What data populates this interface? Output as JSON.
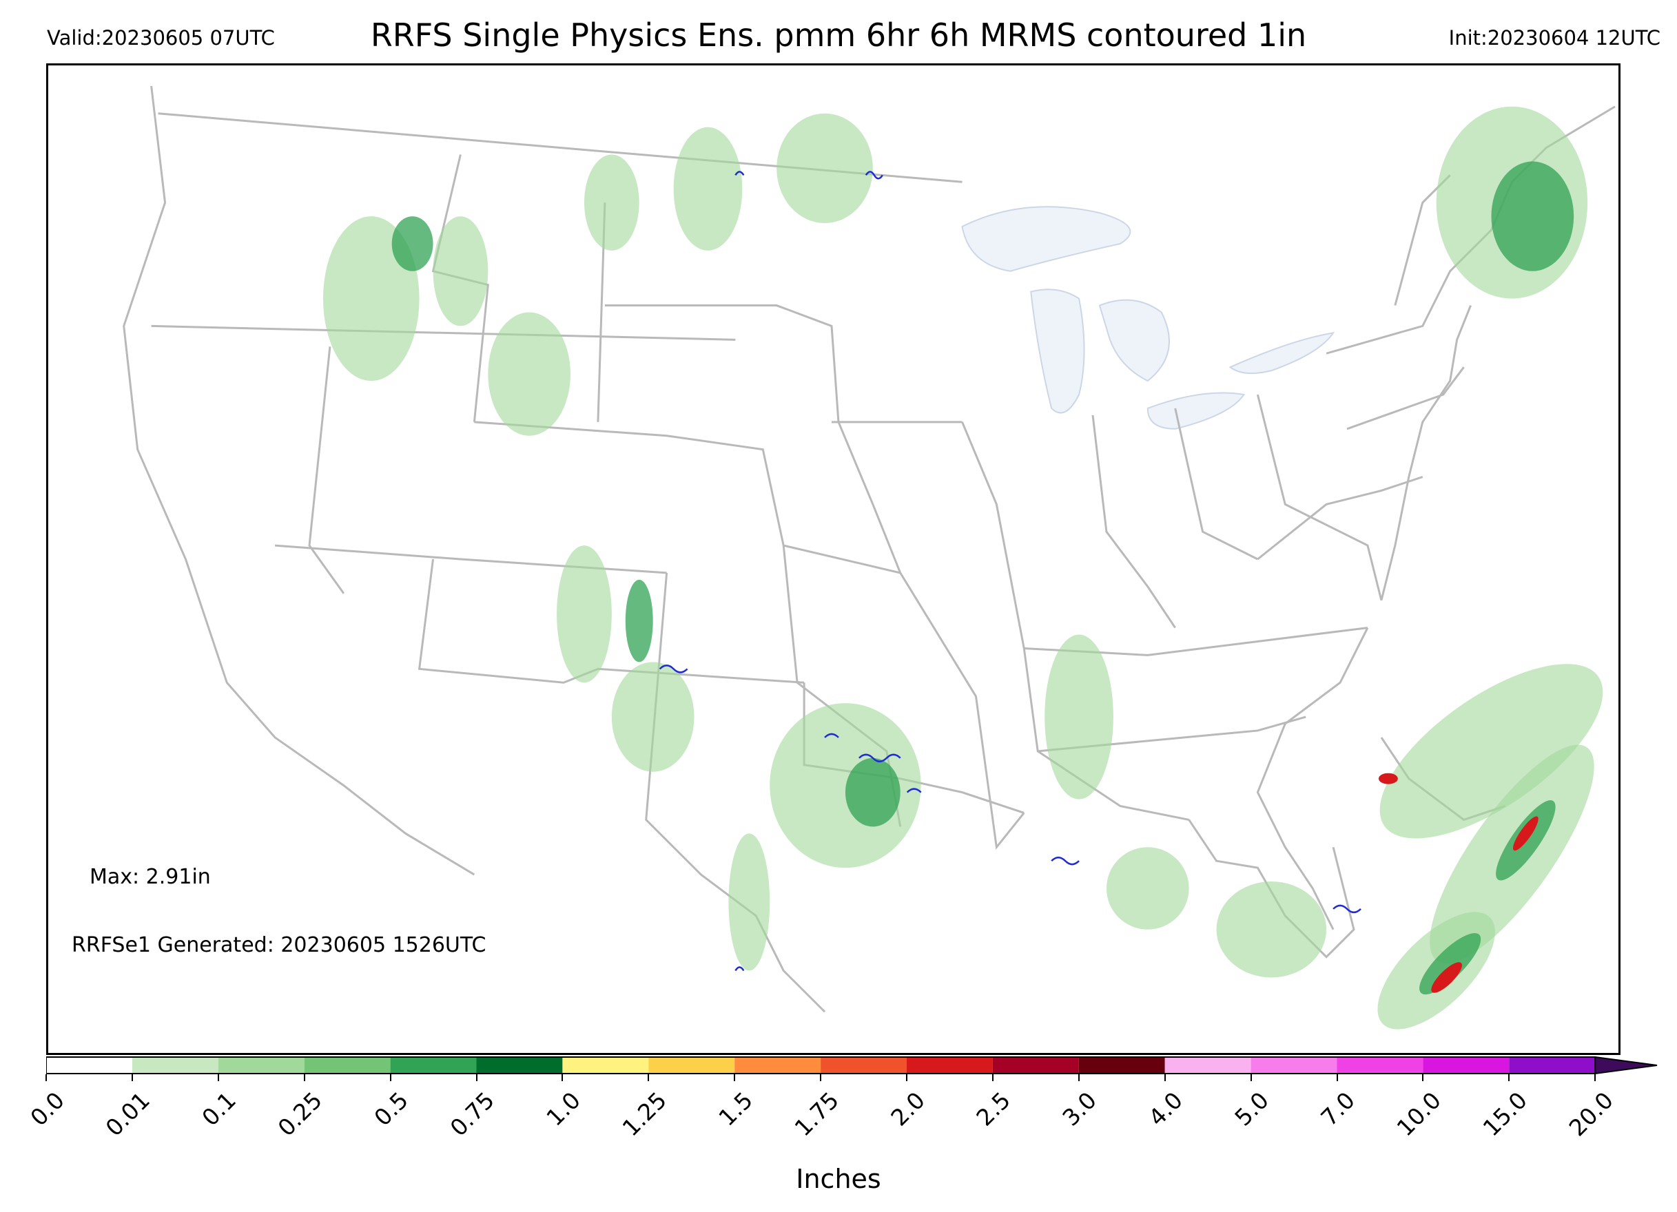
{
  "header": {
    "valid": "Valid:20230605 07UTC",
    "title": "RRFS Single Physics Ens. pmm 6hr 6h MRMS contoured 1in",
    "init": "Init:20230604 12UTC"
  },
  "annotations": {
    "max": "Max: 2.91in",
    "generated": "RRFSe1 Generated: 20230605 1526UTC"
  },
  "colorbar": {
    "title": "Inches",
    "ticks": [
      "0.0",
      "0.01",
      "0.1",
      "0.25",
      "0.5",
      "0.75",
      "1.0",
      "1.25",
      "1.5",
      "1.75",
      "2.0",
      "2.5",
      "3.0",
      "4.0",
      "5.0",
      "7.0",
      "10.0",
      "15.0",
      "20.0"
    ],
    "colors": [
      "#ffffff",
      "#c7e8c0",
      "#a1d99b",
      "#74c476",
      "#31a354",
      "#006d2c",
      "#fff27f",
      "#fdd049",
      "#fd8d3c",
      "#f0522c",
      "#d7191c",
      "#a50026",
      "#67000d",
      "#f9b1f0",
      "#f77cec",
      "#f041e6",
      "#d916df",
      "#8e0eca"
    ],
    "extend_color": "#3d0a5c"
  },
  "map": {
    "land_border_color": "#b9b9b9",
    "lake_fill_color": "#eef3fa",
    "precip_light": "#a1d99b",
    "precip_mid": "#31a354",
    "precip_dark": "#006d2c",
    "contour_color": "#1f2bd6"
  }
}
